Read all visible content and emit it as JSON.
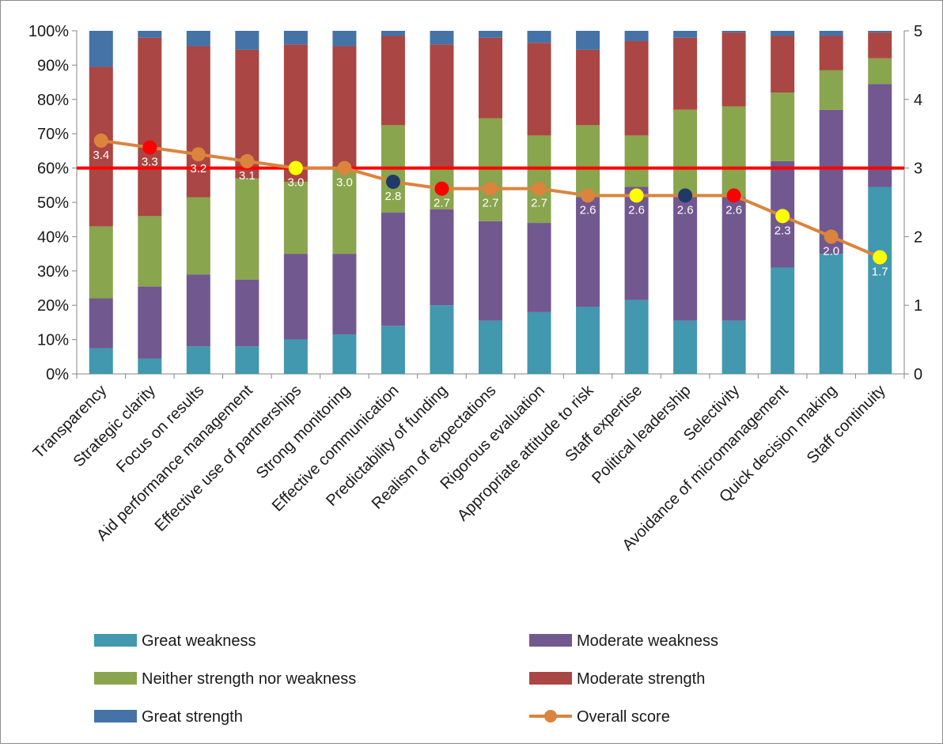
{
  "chart_data": {
    "type": "bar",
    "stacked": true,
    "categories": [
      "Transparency",
      "Strategic clarity",
      "Focus on results",
      "Aid performance management",
      "Effective use of partnerships",
      "Strong monitoring",
      "Effective communication",
      "Predictability of funding",
      "Realism of expectations",
      "Rigorous evaluation",
      "Appropriate attitude to risk",
      "Staff expertise",
      "Political leadership",
      "Selectivity",
      "Avoidance of micromanagement",
      "Quick decision making",
      "Staff continuity"
    ],
    "y_left": {
      "ticks": [
        "0%",
        "10%",
        "20%",
        "30%",
        "40%",
        "50%",
        "60%",
        "70%",
        "80%",
        "90%",
        "100%"
      ],
      "ylim": [
        0,
        100
      ]
    },
    "y_right": {
      "ticks": [
        "0",
        "1",
        "2",
        "3",
        "4",
        "5"
      ],
      "ylim": [
        0,
        5
      ]
    },
    "series": [
      {
        "name": "Great weakness",
        "color": "#4198af",
        "values": [
          7.5,
          4.5,
          8,
          8,
          10,
          11.5,
          14,
          20,
          15.5,
          18,
          19.5,
          21.5,
          15.5,
          15.5,
          31,
          35,
          54.5
        ]
      },
      {
        "name": "Moderate weakness",
        "color": "#71588f",
        "values": [
          14.5,
          21,
          21,
          19.5,
          25,
          23.5,
          33,
          28,
          29,
          26,
          32,
          33,
          36,
          36,
          31,
          42,
          30
        ]
      },
      {
        "name": "Neither strength nor weakness",
        "color": "#89a54e",
        "values": [
          21,
          20.5,
          22.5,
          29.5,
          21,
          25,
          25.5,
          12,
          30,
          25.5,
          21,
          15,
          25.5,
          26.5,
          20,
          11.5,
          7.5
        ]
      },
      {
        "name": "Moderate strength",
        "color": "#aa4643",
        "values": [
          46.5,
          52,
          44,
          37.5,
          40,
          35.5,
          26,
          36,
          23.5,
          27,
          22,
          27.5,
          21,
          21.5,
          16.5,
          10,
          7.5
        ]
      },
      {
        "name": "Great strength",
        "color": "#4572a7",
        "values": [
          10.5,
          2,
          4.5,
          5.5,
          4,
          4.5,
          1.5,
          4,
          2,
          3.5,
          5.5,
          3,
          2,
          0.5,
          1.5,
          1.5,
          0.5
        ]
      }
    ],
    "line": {
      "name": "Overall score",
      "color": "#db843d",
      "axis": "right",
      "values": [
        3.4,
        3.3,
        3.2,
        3.1,
        3.0,
        3.0,
        2.8,
        2.7,
        2.7,
        2.7,
        2.6,
        2.6,
        2.6,
        2.6,
        2.3,
        2.0,
        1.7
      ],
      "point_colors": [
        "#db843d",
        "#ff0000",
        "#db843d",
        "#db843d",
        "#ffff00",
        "#db843d",
        "#1f3a68",
        "#ff0000",
        "#db843d",
        "#db843d",
        "#db843d",
        "#ffff00",
        "#1f3a68",
        "#ff0000",
        "#ffff00",
        "#db843d",
        "#ffff00"
      ],
      "labels": [
        "3.4",
        "3.3",
        "3.2",
        "3.1",
        "3.0",
        "3.0",
        "2.8",
        "2.7",
        "2.7",
        "2.7",
        "2.6",
        "2.6",
        "2.6",
        "2.6",
        "2.3",
        "2.0",
        "1.7"
      ]
    },
    "reference_line": {
      "value": 3,
      "axis": "right",
      "color": "#ff0000"
    },
    "legend": {
      "placement": "bottom",
      "items": [
        {
          "label": "Great weakness",
          "kind": "box",
          "color": "#4198af"
        },
        {
          "label": "Moderate weakness",
          "kind": "box",
          "color": "#71588f"
        },
        {
          "label": "Neither strength nor weakness",
          "kind": "box",
          "color": "#89a54e"
        },
        {
          "label": "Moderate strength",
          "kind": "box",
          "color": "#aa4643"
        },
        {
          "label": "Great strength",
          "kind": "box",
          "color": "#4572a7"
        },
        {
          "label": "Overall score",
          "kind": "line",
          "color": "#db843d"
        }
      ]
    }
  }
}
